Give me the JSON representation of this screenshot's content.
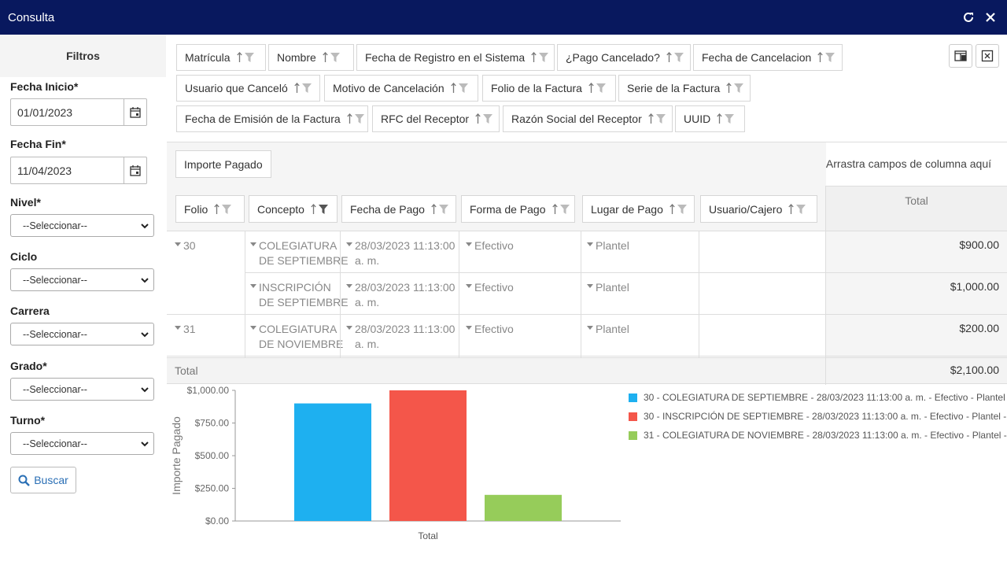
{
  "window": {
    "title": "Consulta"
  },
  "sidebar": {
    "header": "Filtros",
    "fecha_inicio": {
      "label": "Fecha Inicio*",
      "value": "01/01/2023"
    },
    "fecha_fin": {
      "label": "Fecha Fin*",
      "value": "11/04/2023"
    },
    "nivel": {
      "label": "Nivel*",
      "value": "--Seleccionar--"
    },
    "ciclo": {
      "label": "Ciclo",
      "value": "--Seleccionar--"
    },
    "carrera": {
      "label": "Carrera",
      "value": "--Seleccionar--"
    },
    "grado": {
      "label": "Grado*",
      "value": "--Seleccionar--"
    },
    "turno": {
      "label": "Turno*",
      "value": "--Seleccionar--"
    },
    "buscar": "Buscar"
  },
  "filter_fields": [
    "Matrícula",
    "Nombre",
    "Fecha de Registro en el Sistema",
    "¿Pago Cancelado?",
    "Fecha de Cancelacion",
    "Usuario que Canceló",
    "Motivo de Cancelación",
    "Folio de la Factura",
    "Serie de la Factura",
    "Fecha de Emisión de la Factura",
    "RFC del Receptor",
    "Razón Social del Receptor",
    "UUID"
  ],
  "data_field": "Importe Pagado",
  "column_hint": "Arrastra campos de columna aquí",
  "row_fields": [
    "Folio",
    "Concepto",
    "Fecha de Pago",
    "Forma de Pago",
    "Lugar de Pago",
    "Usuario/Cajero"
  ],
  "total_header": "Total",
  "rows": [
    {
      "folio": "30",
      "concepto": [
        "COLEGIATURA",
        "DE SEPTIEMBRE"
      ],
      "fecha": [
        "28/03/2023 11:13:00",
        "a. m."
      ],
      "forma": "Efectivo",
      "lugar": "Plantel",
      "amount": "$900.00"
    },
    {
      "folio": "",
      "concepto": [
        "INSCRIPCIÓN",
        "DE SEPTIEMBRE"
      ],
      "fecha": [
        "28/03/2023 11:13:00",
        "a. m."
      ],
      "forma": "Efectivo",
      "lugar": "Plantel",
      "amount": "$1,000.00"
    },
    {
      "folio": "31",
      "concepto": [
        "COLEGIATURA",
        "DE NOVIEMBRE"
      ],
      "fecha": [
        "28/03/2023 11:13:00",
        "a. m."
      ],
      "forma": "Efectivo",
      "lugar": "Plantel",
      "amount": "$200.00"
    }
  ],
  "grand_total": {
    "label": "Total",
    "value": "$2,100.00"
  },
  "colors": {
    "title_bar": "#08185e",
    "series1": "#1eb0f0",
    "series2": "#f4564a",
    "series3": "#96cc5a",
    "link": "#2a6fb5"
  },
  "chart_data": {
    "type": "bar",
    "categories": [
      "Total"
    ],
    "ylabel": "Importe Pagado",
    "xlabel": "",
    "ylim": [
      0,
      1000
    ],
    "yticks": [
      "$0.00",
      "$250.00",
      "$500.00",
      "$750.00",
      "$1,000.00"
    ],
    "series": [
      {
        "name": "30 - COLEGIATURA DE SEPTIEMBRE - 28/03/2023 11:13:00 a. m. - Efectivo - Plantel -",
        "values": [
          900
        ],
        "color": "#1eb0f0"
      },
      {
        "name": "30 - INSCRIPCIÓN DE SEPTIEMBRE - 28/03/2023 11:13:00 a. m. - Efectivo - Plantel -",
        "values": [
          1000
        ],
        "color": "#f4564a"
      },
      {
        "name": "31 - COLEGIATURA DE NOVIEMBRE - 28/03/2023 11:13:00 a. m. - Efectivo - Plantel -",
        "values": [
          200
        ],
        "color": "#96cc5a"
      }
    ],
    "legend": "right"
  }
}
